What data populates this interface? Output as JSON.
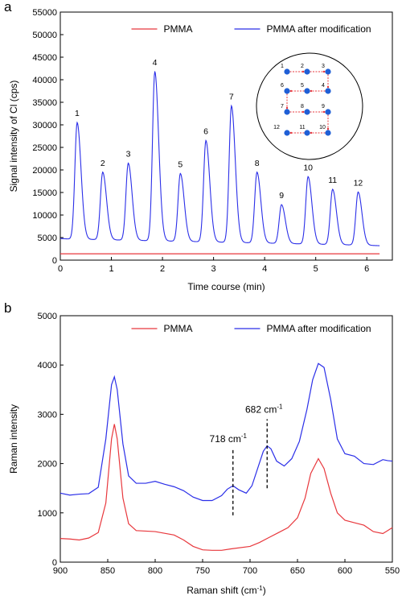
{
  "colors": {
    "pmma": "#e8383d",
    "modified": "#2b2fe8",
    "axis": "#000000",
    "arrow": "#e8383d",
    "dot": "#1f5fd6"
  },
  "chart_data": [
    {
      "panel": "a",
      "type": "line",
      "xlabel": "Time course (min)",
      "ylabel": "Signal intensity of Cl (cps)",
      "xlim": [
        0,
        6.5
      ],
      "ylim": [
        0,
        55000
      ],
      "xticks": [
        0,
        1,
        2,
        3,
        4,
        5,
        6
      ],
      "yticks": [
        0,
        5000,
        10000,
        15000,
        20000,
        25000,
        30000,
        35000,
        40000,
        45000,
        50000,
        55000
      ],
      "legend": "top",
      "series": [
        {
          "name": "PMMA",
          "color": "#e8383d",
          "points": [
            [
              0.0,
              1400
            ],
            [
              6.25,
              1400
            ]
          ]
        },
        {
          "name": "PMMA after modification",
          "color": "#2b2fe8",
          "baseline": [
            [
              0.0,
              4800
            ],
            [
              0.15,
              4700
            ],
            [
              6.0,
              3300
            ],
            [
              6.25,
              3200
            ]
          ],
          "peaks": [
            {
              "label": "1",
              "t": 0.33,
              "y": 30500
            },
            {
              "label": "2",
              "t": 0.83,
              "y": 19500
            },
            {
              "label": "3",
              "t": 1.33,
              "y": 21500
            },
            {
              "label": "4",
              "t": 1.85,
              "y": 41800
            },
            {
              "label": "5",
              "t": 2.35,
              "y": 19200
            },
            {
              "label": "6",
              "t": 2.85,
              "y": 26500
            },
            {
              "label": "7",
              "t": 3.35,
              "y": 34200
            },
            {
              "label": "8",
              "t": 3.85,
              "y": 19500
            },
            {
              "label": "9",
              "t": 4.33,
              "y": 12300
            },
            {
              "label": "10",
              "t": 4.85,
              "y": 18500
            },
            {
              "label": "11",
              "t": 5.33,
              "y": 15700
            },
            {
              "label": "12",
              "t": 5.83,
              "y": 15100
            }
          ]
        }
      ],
      "inset": {
        "labels": [
          "1",
          "2",
          "3",
          "4",
          "5",
          "6",
          "7",
          "8",
          "9",
          "10",
          "11",
          "12"
        ]
      }
    },
    {
      "panel": "b",
      "type": "line",
      "xlabel": "Raman shift (cm-1)",
      "ylabel": "Raman intensity",
      "xlim": [
        900,
        550
      ],
      "ylim": [
        0,
        5000
      ],
      "xticks": [
        900,
        850,
        800,
        750,
        700,
        650,
        600,
        550
      ],
      "yticks": [
        0,
        1000,
        2000,
        3000,
        4000,
        5000
      ],
      "legend": "top",
      "series": [
        {
          "name": "PMMA",
          "color": "#e8383d",
          "points": [
            [
              900,
              480
            ],
            [
              890,
              470
            ],
            [
              880,
              450
            ],
            [
              870,
              490
            ],
            [
              860,
              600
            ],
            [
              852,
              1200
            ],
            [
              846,
              2500
            ],
            [
              843,
              2800
            ],
            [
              840,
              2500
            ],
            [
              834,
              1300
            ],
            [
              828,
              780
            ],
            [
              820,
              640
            ],
            [
              800,
              620
            ],
            [
              780,
              550
            ],
            [
              770,
              450
            ],
            [
              760,
              320
            ],
            [
              750,
              250
            ],
            [
              740,
              240
            ],
            [
              730,
              240
            ],
            [
              720,
              270
            ],
            [
              700,
              320
            ],
            [
              690,
              400
            ],
            [
              680,
              500
            ],
            [
              670,
              600
            ],
            [
              660,
              700
            ],
            [
              650,
              900
            ],
            [
              642,
              1300
            ],
            [
              636,
              1800
            ],
            [
              628,
              2100
            ],
            [
              622,
              1900
            ],
            [
              615,
              1400
            ],
            [
              608,
              1000
            ],
            [
              600,
              850
            ],
            [
              590,
              800
            ],
            [
              580,
              750
            ],
            [
              570,
              620
            ],
            [
              560,
              580
            ],
            [
              555,
              640
            ],
            [
              550,
              700
            ]
          ]
        },
        {
          "name": "PMMA after modification",
          "color": "#2b2fe8",
          "points": [
            [
              900,
              1400
            ],
            [
              890,
              1360
            ],
            [
              880,
              1380
            ],
            [
              870,
              1390
            ],
            [
              860,
              1520
            ],
            [
              852,
              2500
            ],
            [
              846,
              3600
            ],
            [
              843,
              3760
            ],
            [
              840,
              3500
            ],
            [
              834,
              2400
            ],
            [
              828,
              1750
            ],
            [
              820,
              1600
            ],
            [
              810,
              1600
            ],
            [
              800,
              1640
            ],
            [
              790,
              1580
            ],
            [
              780,
              1530
            ],
            [
              770,
              1450
            ],
            [
              760,
              1320
            ],
            [
              750,
              1250
            ],
            [
              740,
              1250
            ],
            [
              730,
              1350
            ],
            [
              724,
              1480
            ],
            [
              718,
              1550
            ],
            [
              712,
              1470
            ],
            [
              704,
              1400
            ],
            [
              698,
              1550
            ],
            [
              692,
              1900
            ],
            [
              686,
              2250
            ],
            [
              682,
              2360
            ],
            [
              678,
              2300
            ],
            [
              672,
              2050
            ],
            [
              664,
              1950
            ],
            [
              656,
              2100
            ],
            [
              648,
              2450
            ],
            [
              640,
              3100
            ],
            [
              634,
              3700
            ],
            [
              628,
              4030
            ],
            [
              622,
              3950
            ],
            [
              615,
              3300
            ],
            [
              608,
              2500
            ],
            [
              600,
              2200
            ],
            [
              590,
              2150
            ],
            [
              580,
              2000
            ],
            [
              570,
              1980
            ],
            [
              560,
              2080
            ],
            [
              555,
              2060
            ],
            [
              550,
              2050
            ]
          ]
        }
      ],
      "annotations": [
        {
          "text": "718 cm",
          "sup": "-1",
          "x": 718,
          "y_from": 950,
          "y_to": 2300
        },
        {
          "text": "682 cm",
          "sup": "-1",
          "x": 682,
          "y_from": 1500,
          "y_to": 2900
        }
      ]
    }
  ]
}
